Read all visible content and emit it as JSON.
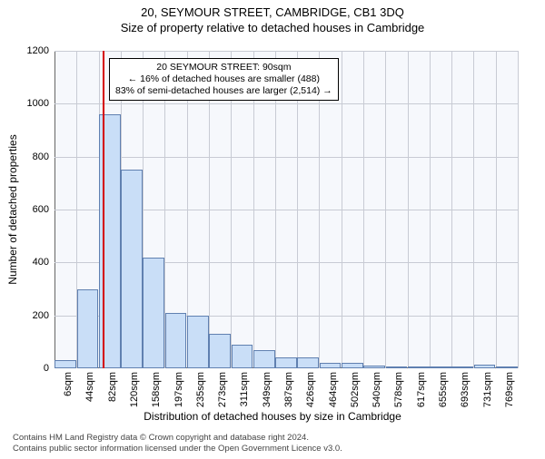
{
  "header": {
    "title": "20, SEYMOUR STREET, CAMBRIDGE, CB1 3DQ",
    "subtitle": "Size of property relative to detached houses in Cambridge"
  },
  "chart": {
    "type": "histogram",
    "ylabel": "Number of detached properties",
    "xlabel": "Distribution of detached houses by size in Cambridge",
    "ylim": [
      0,
      1200
    ],
    "ytick_step": 200,
    "yticks": [
      0,
      200,
      400,
      600,
      800,
      1000,
      1200
    ],
    "x_categories": [
      "6sqm",
      "44sqm",
      "82sqm",
      "120sqm",
      "158sqm",
      "197sqm",
      "235sqm",
      "273sqm",
      "311sqm",
      "349sqm",
      "387sqm",
      "426sqm",
      "464sqm",
      "502sqm",
      "540sqm",
      "578sqm",
      "617sqm",
      "655sqm",
      "693sqm",
      "731sqm",
      "769sqm"
    ],
    "values": [
      30,
      300,
      960,
      750,
      420,
      210,
      200,
      130,
      90,
      70,
      40,
      40,
      20,
      20,
      10,
      5,
      5,
      5,
      5,
      15,
      5
    ],
    "bar_fill": "#c9def7",
    "bar_stroke": "#6080b0",
    "bar_width": 0.98,
    "background_color": "#f6f8fc",
    "grid_color": "#c8cbd4",
    "axis_color": "#666666",
    "label_fontsize": 12,
    "tick_fontsize": 11,
    "marker": {
      "x_value": 90,
      "color": "#d40000",
      "width": 2
    }
  },
  "annotation": {
    "line1": "20 SEYMOUR STREET: 90sqm",
    "line2": "← 16% of detached houses are smaller (488)",
    "line3": "83% of semi-detached houses are larger (2,514) →",
    "border_color": "#000000",
    "background": "#ffffff",
    "fontsize": 10.5
  },
  "footer": {
    "line1": "Contains HM Land Registry data © Crown copyright and database right 2024.",
    "line2": "Contains public sector information licensed under the Open Government Licence v3.0."
  }
}
